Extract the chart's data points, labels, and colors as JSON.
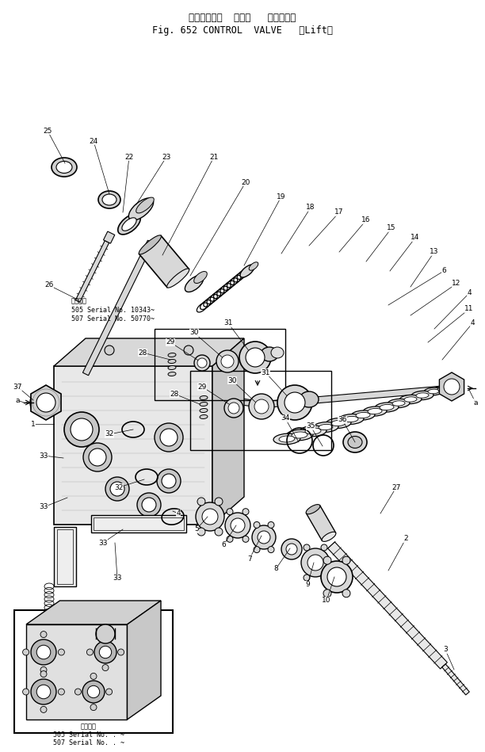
{
  "title_line1": "コントロール  バルブ   （リフト）",
  "title_line2": "Fig. 652 CONTROL  VALVE   （Lift）",
  "background_color": "#ffffff",
  "line_color": "#000000",
  "fig_width": 6.12,
  "fig_height": 9.49,
  "dpi": 100,
  "note1_line1": "適用号機",
  "note1_line2": "505 Serial No. 10343~",
  "note1_line3": "507 Serial No. 50770~",
  "note2_line1": "適用号機",
  "note2_line2": "505 Serial No. . ~",
  "note2_line3": "507 Serial No. . ~"
}
